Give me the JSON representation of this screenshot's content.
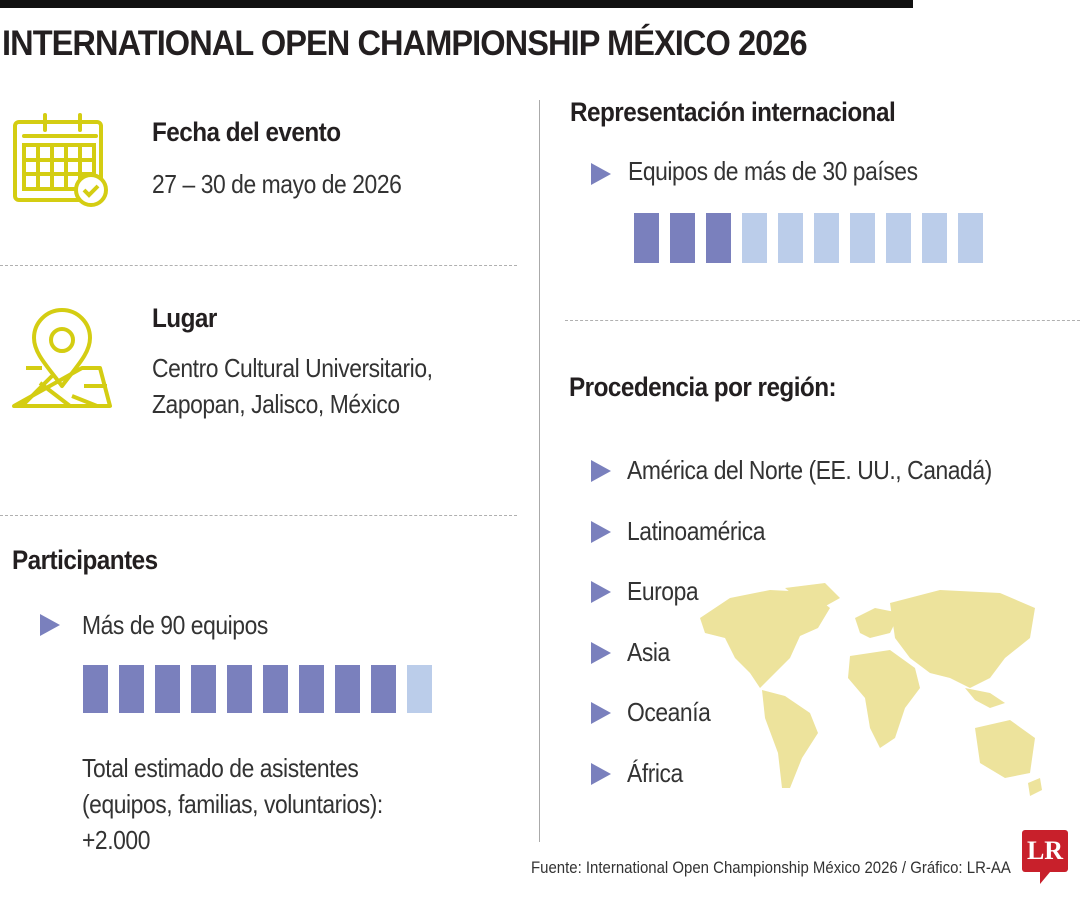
{
  "title": "INTERNATIONAL OPEN CHAMPIONSHIP MÉXICO 2026",
  "fecha": {
    "heading": "Fecha del evento",
    "value": "27 – 30 de mayo de 2026",
    "icon": "calendar-check-icon"
  },
  "lugar": {
    "heading": "Lugar",
    "lines": [
      "Centro Cultural Universitario,",
      "Zapopan, Jalisco, México"
    ],
    "icon": "map-pin-icon"
  },
  "participantes": {
    "heading": "Participantes",
    "bullet": "Más de 90 equipos",
    "squares_filled": 9,
    "squares_total": 10,
    "total_lines": [
      "Total estimado de asistentes",
      "(equipos, familias, voluntarios):",
      "+2.000"
    ]
  },
  "representacion": {
    "heading": "Representación internacional",
    "bullet": "Equipos de más de 30 países",
    "squares_filled": 3,
    "squares_total": 10
  },
  "procedencia": {
    "heading": "Procedencia por región:",
    "regions": [
      "América del Norte (EE. UU., Canadá)",
      "Latinoamérica",
      "Europa",
      "Asia",
      "Oceanía",
      "África"
    ]
  },
  "source": "Fuente: International Open Championship México 2026 / Gráfico: LR-AA",
  "logo": "LR",
  "colors": {
    "icon": "#d4cd12",
    "dark_square": "#7a80bd",
    "light_square": "#bbcdea",
    "map": "#ede39c",
    "logo": "#c8202b"
  }
}
